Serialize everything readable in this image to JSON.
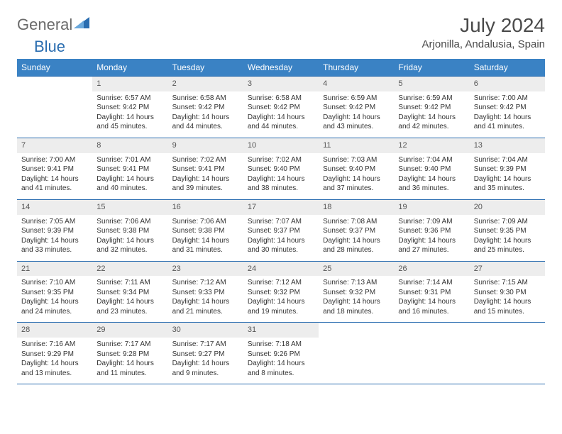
{
  "logo": {
    "general": "General",
    "blue": "Blue"
  },
  "title": "July 2024",
  "location": "Arjonilla, Andalusia, Spain",
  "colors": {
    "header_bg": "#3a82c4",
    "row_border": "#2a6db0",
    "daynum_bg": "#ededed",
    "text": "#333333"
  },
  "weekdays": [
    "Sunday",
    "Monday",
    "Tuesday",
    "Wednesday",
    "Thursday",
    "Friday",
    "Saturday"
  ],
  "weeks": [
    [
      {
        "n": "",
        "sr": "",
        "ss": "",
        "dl": ""
      },
      {
        "n": "1",
        "sr": "Sunrise: 6:57 AM",
        "ss": "Sunset: 9:42 PM",
        "dl": "Daylight: 14 hours and 45 minutes."
      },
      {
        "n": "2",
        "sr": "Sunrise: 6:58 AM",
        "ss": "Sunset: 9:42 PM",
        "dl": "Daylight: 14 hours and 44 minutes."
      },
      {
        "n": "3",
        "sr": "Sunrise: 6:58 AM",
        "ss": "Sunset: 9:42 PM",
        "dl": "Daylight: 14 hours and 44 minutes."
      },
      {
        "n": "4",
        "sr": "Sunrise: 6:59 AM",
        "ss": "Sunset: 9:42 PM",
        "dl": "Daylight: 14 hours and 43 minutes."
      },
      {
        "n": "5",
        "sr": "Sunrise: 6:59 AM",
        "ss": "Sunset: 9:42 PM",
        "dl": "Daylight: 14 hours and 42 minutes."
      },
      {
        "n": "6",
        "sr": "Sunrise: 7:00 AM",
        "ss": "Sunset: 9:42 PM",
        "dl": "Daylight: 14 hours and 41 minutes."
      }
    ],
    [
      {
        "n": "7",
        "sr": "Sunrise: 7:00 AM",
        "ss": "Sunset: 9:41 PM",
        "dl": "Daylight: 14 hours and 41 minutes."
      },
      {
        "n": "8",
        "sr": "Sunrise: 7:01 AM",
        "ss": "Sunset: 9:41 PM",
        "dl": "Daylight: 14 hours and 40 minutes."
      },
      {
        "n": "9",
        "sr": "Sunrise: 7:02 AM",
        "ss": "Sunset: 9:41 PM",
        "dl": "Daylight: 14 hours and 39 minutes."
      },
      {
        "n": "10",
        "sr": "Sunrise: 7:02 AM",
        "ss": "Sunset: 9:40 PM",
        "dl": "Daylight: 14 hours and 38 minutes."
      },
      {
        "n": "11",
        "sr": "Sunrise: 7:03 AM",
        "ss": "Sunset: 9:40 PM",
        "dl": "Daylight: 14 hours and 37 minutes."
      },
      {
        "n": "12",
        "sr": "Sunrise: 7:04 AM",
        "ss": "Sunset: 9:40 PM",
        "dl": "Daylight: 14 hours and 36 minutes."
      },
      {
        "n": "13",
        "sr": "Sunrise: 7:04 AM",
        "ss": "Sunset: 9:39 PM",
        "dl": "Daylight: 14 hours and 35 minutes."
      }
    ],
    [
      {
        "n": "14",
        "sr": "Sunrise: 7:05 AM",
        "ss": "Sunset: 9:39 PM",
        "dl": "Daylight: 14 hours and 33 minutes."
      },
      {
        "n": "15",
        "sr": "Sunrise: 7:06 AM",
        "ss": "Sunset: 9:38 PM",
        "dl": "Daylight: 14 hours and 32 minutes."
      },
      {
        "n": "16",
        "sr": "Sunrise: 7:06 AM",
        "ss": "Sunset: 9:38 PM",
        "dl": "Daylight: 14 hours and 31 minutes."
      },
      {
        "n": "17",
        "sr": "Sunrise: 7:07 AM",
        "ss": "Sunset: 9:37 PM",
        "dl": "Daylight: 14 hours and 30 minutes."
      },
      {
        "n": "18",
        "sr": "Sunrise: 7:08 AM",
        "ss": "Sunset: 9:37 PM",
        "dl": "Daylight: 14 hours and 28 minutes."
      },
      {
        "n": "19",
        "sr": "Sunrise: 7:09 AM",
        "ss": "Sunset: 9:36 PM",
        "dl": "Daylight: 14 hours and 27 minutes."
      },
      {
        "n": "20",
        "sr": "Sunrise: 7:09 AM",
        "ss": "Sunset: 9:35 PM",
        "dl": "Daylight: 14 hours and 25 minutes."
      }
    ],
    [
      {
        "n": "21",
        "sr": "Sunrise: 7:10 AM",
        "ss": "Sunset: 9:35 PM",
        "dl": "Daylight: 14 hours and 24 minutes."
      },
      {
        "n": "22",
        "sr": "Sunrise: 7:11 AM",
        "ss": "Sunset: 9:34 PM",
        "dl": "Daylight: 14 hours and 23 minutes."
      },
      {
        "n": "23",
        "sr": "Sunrise: 7:12 AM",
        "ss": "Sunset: 9:33 PM",
        "dl": "Daylight: 14 hours and 21 minutes."
      },
      {
        "n": "24",
        "sr": "Sunrise: 7:12 AM",
        "ss": "Sunset: 9:32 PM",
        "dl": "Daylight: 14 hours and 19 minutes."
      },
      {
        "n": "25",
        "sr": "Sunrise: 7:13 AM",
        "ss": "Sunset: 9:32 PM",
        "dl": "Daylight: 14 hours and 18 minutes."
      },
      {
        "n": "26",
        "sr": "Sunrise: 7:14 AM",
        "ss": "Sunset: 9:31 PM",
        "dl": "Daylight: 14 hours and 16 minutes."
      },
      {
        "n": "27",
        "sr": "Sunrise: 7:15 AM",
        "ss": "Sunset: 9:30 PM",
        "dl": "Daylight: 14 hours and 15 minutes."
      }
    ],
    [
      {
        "n": "28",
        "sr": "Sunrise: 7:16 AM",
        "ss": "Sunset: 9:29 PM",
        "dl": "Daylight: 14 hours and 13 minutes."
      },
      {
        "n": "29",
        "sr": "Sunrise: 7:17 AM",
        "ss": "Sunset: 9:28 PM",
        "dl": "Daylight: 14 hours and 11 minutes."
      },
      {
        "n": "30",
        "sr": "Sunrise: 7:17 AM",
        "ss": "Sunset: 9:27 PM",
        "dl": "Daylight: 14 hours and 9 minutes."
      },
      {
        "n": "31",
        "sr": "Sunrise: 7:18 AM",
        "ss": "Sunset: 9:26 PM",
        "dl": "Daylight: 14 hours and 8 minutes."
      },
      {
        "n": "",
        "sr": "",
        "ss": "",
        "dl": ""
      },
      {
        "n": "",
        "sr": "",
        "ss": "",
        "dl": ""
      },
      {
        "n": "",
        "sr": "",
        "ss": "",
        "dl": ""
      }
    ]
  ]
}
